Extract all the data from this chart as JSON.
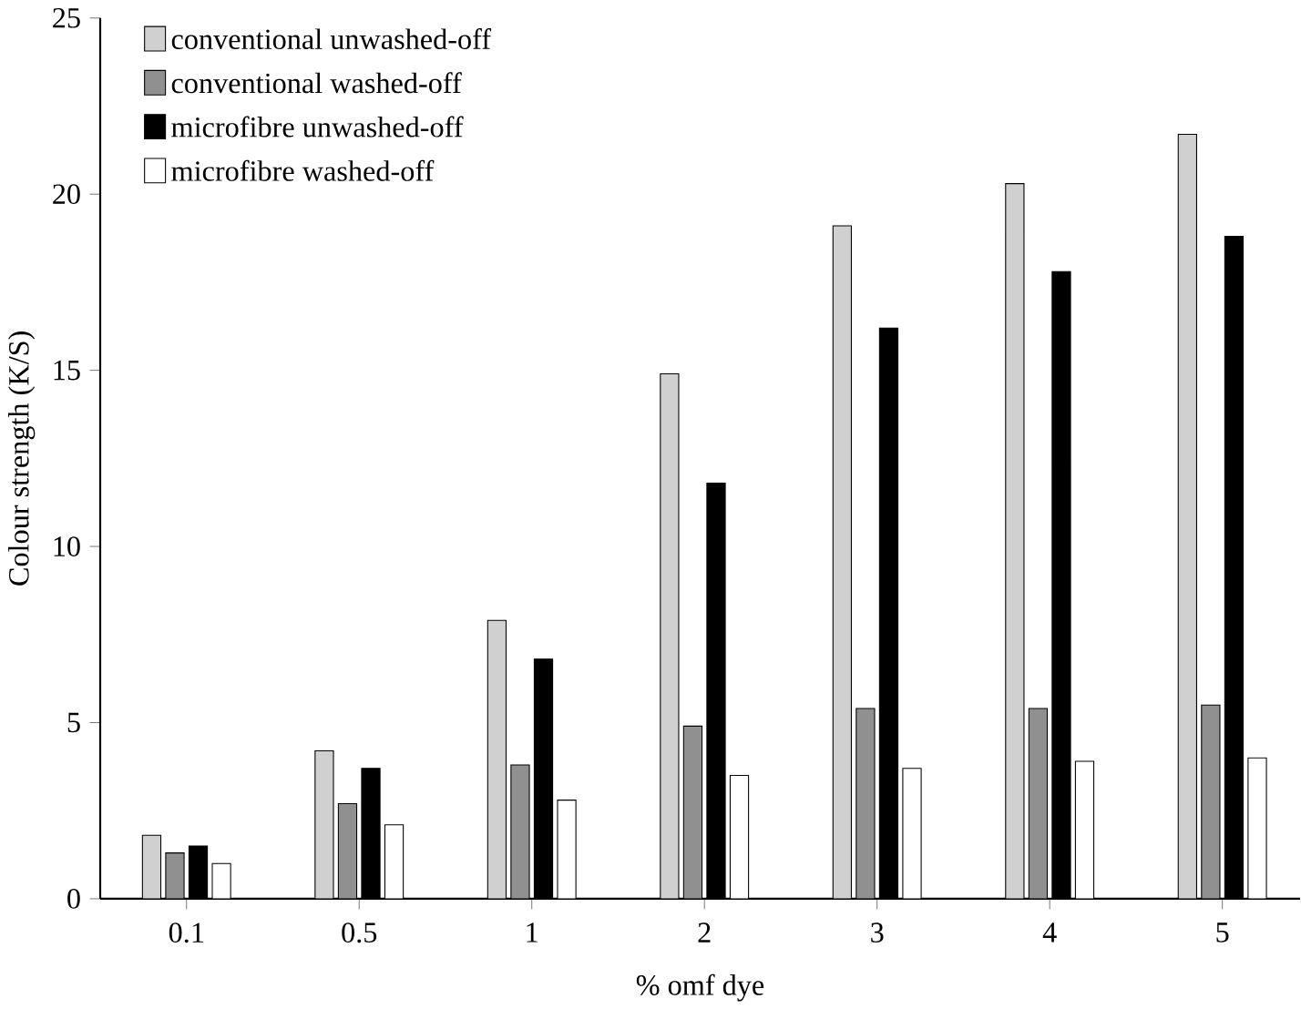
{
  "chart_data": {
    "type": "bar",
    "xlabel": "% omf dye",
    "ylabel": "Colour strength (K/S)",
    "categories": [
      "0.1",
      "0.5",
      "1",
      "2",
      "3",
      "4",
      "5"
    ],
    "series": [
      {
        "name": "conventional unwashed-off",
        "color": "#d0d0d0",
        "values": [
          1.8,
          4.2,
          7.9,
          14.9,
          19.1,
          20.3,
          21.7
        ]
      },
      {
        "name": "conventional washed-off",
        "color": "#909090",
        "values": [
          1.3,
          2.7,
          3.8,
          4.9,
          5.4,
          5.4,
          5.5
        ]
      },
      {
        "name": "microfibre unwashed-off",
        "color": "#000000",
        "values": [
          1.5,
          3.7,
          6.8,
          11.8,
          16.2,
          17.8,
          18.8
        ]
      },
      {
        "name": "microfibre washed-off",
        "color": "#ffffff",
        "values": [
          1.0,
          2.1,
          2.8,
          3.5,
          3.7,
          3.9,
          4.0
        ]
      }
    ],
    "ylim": [
      0,
      25
    ],
    "yticks": [
      0,
      5,
      10,
      15,
      20,
      25
    ],
    "grid": false,
    "legend": "top left"
  }
}
